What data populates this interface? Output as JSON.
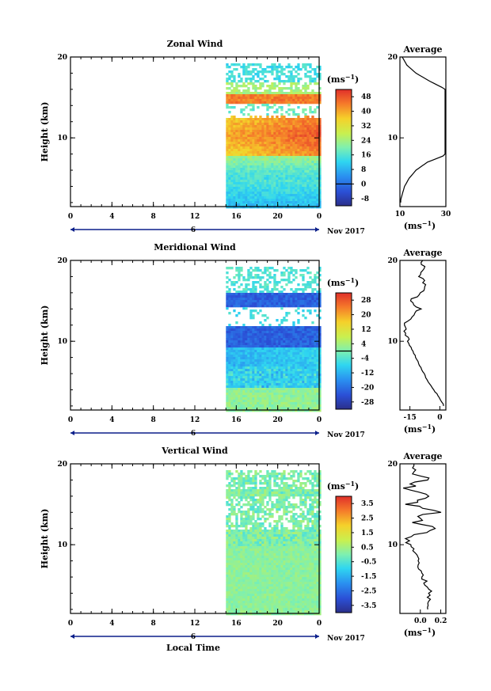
{
  "figure": {
    "xlabel": "Local Time",
    "date_label": "Nov 2017",
    "day_label": "6",
    "unit_label": "(ms",
    "unit_exp": "−1",
    "average_title": "Average"
  },
  "chart_data": [
    {
      "type": "heatmap",
      "title": "Zonal Wind",
      "ylabel": "Height (km)",
      "xlabel": "",
      "x_ticks": [
        "0",
        "4",
        "8",
        "12",
        "16",
        "20",
        "0"
      ],
      "y_ticks": [
        "10",
        "20"
      ],
      "xlim": [
        0,
        24
      ],
      "ylim": [
        1.5,
        20
      ],
      "data_start_hour": 15,
      "colorbar": {
        "ticks": [
          "48",
          "40",
          "32",
          "24",
          "16",
          "8",
          "0",
          "-8"
        ],
        "range": [
          -12,
          52
        ]
      },
      "profile": [
        {
          "h": 2,
          "v": 10
        },
        {
          "h": 3,
          "v": 11
        },
        {
          "h": 4,
          "v": 12
        },
        {
          "h": 5,
          "v": 14
        },
        {
          "h": 6,
          "v": 17
        },
        {
          "h": 7,
          "v": 22
        },
        {
          "h": 8,
          "v": 31
        },
        {
          "h": 9,
          "v": 40
        },
        {
          "h": 10,
          "v": 46
        },
        {
          "h": 11,
          "v": 48
        },
        {
          "h": 12,
          "v": 47
        },
        {
          "h": 13,
          "v": 44
        },
        {
          "h": 14,
          "v": 42
        },
        {
          "h": 15,
          "v": 37
        },
        {
          "h": 16,
          "v": 30
        },
        {
          "h": 17,
          "v": 23
        },
        {
          "h": 18,
          "v": 17
        },
        {
          "h": 19,
          "v": 13
        },
        {
          "h": 20,
          "v": 11
        }
      ],
      "profile_ticks": [
        "10",
        "30"
      ],
      "profile_xlim": [
        10,
        30
      ]
    },
    {
      "type": "heatmap",
      "title": "Meridional Wind",
      "ylabel": "Height (km)",
      "xlabel": "",
      "x_ticks": [
        "0",
        "4",
        "8",
        "12",
        "16",
        "20",
        "0"
      ],
      "y_ticks": [
        "10",
        "20"
      ],
      "xlim": [
        0,
        24
      ],
      "ylim": [
        1.5,
        20
      ],
      "data_start_hour": 15,
      "colorbar": {
        "ticks": [
          "28",
          "20",
          "12",
          "4",
          "-4",
          "-12",
          "-20",
          "-28"
        ],
        "range": [
          -32,
          32
        ]
      },
      "profile": [
        {
          "h": 2,
          "v": 2
        },
        {
          "h": 3,
          "v": 0
        },
        {
          "h": 4,
          "v": -3
        },
        {
          "h": 5,
          "v": -6
        },
        {
          "h": 6,
          "v": -8
        },
        {
          "h": 7,
          "v": -10
        },
        {
          "h": 8,
          "v": -12
        },
        {
          "h": 9,
          "v": -14
        },
        {
          "h": 10,
          "v": -16
        },
        {
          "h": 11,
          "v": -17
        },
        {
          "h": 12,
          "v": -18
        },
        {
          "h": 13,
          "v": -14
        },
        {
          "h": 14,
          "v": -10
        },
        {
          "h": 15,
          "v": -15
        },
        {
          "h": 16,
          "v": -9
        },
        {
          "h": 17,
          "v": -7
        },
        {
          "h": 18,
          "v": -10
        },
        {
          "h": 19,
          "v": -8
        },
        {
          "h": 20,
          "v": -9
        }
      ],
      "profile_ticks": [
        "-15",
        "0"
      ],
      "profile_xlim": [
        -20,
        3
      ]
    },
    {
      "type": "heatmap",
      "title": "Vertical Wind",
      "ylabel": "Height (km)",
      "xlabel": "Local Time",
      "x_ticks": [
        "0",
        "4",
        "8",
        "12",
        "16",
        "20",
        "0"
      ],
      "y_ticks": [
        "10",
        "20"
      ],
      "xlim": [
        0,
        24
      ],
      "ylim": [
        1.5,
        20
      ],
      "data_start_hour": 15,
      "colorbar": {
        "ticks": [
          "3.5",
          "2.5",
          "1.5",
          "0.5",
          "-0.5",
          "-1.5",
          "-2.5",
          "-3.5"
        ],
        "range": [
          -4,
          4
        ]
      },
      "profile": [
        {
          "h": 2,
          "v": 0.05
        },
        {
          "h": 3,
          "v": 0.08
        },
        {
          "h": 4,
          "v": 0.1
        },
        {
          "h": 5,
          "v": 0.06
        },
        {
          "h": 6,
          "v": 0.03
        },
        {
          "h": 7,
          "v": 0.0
        },
        {
          "h": 8,
          "v": -0.02
        },
        {
          "h": 9,
          "v": -0.05
        },
        {
          "h": 10,
          "v": -0.08
        },
        {
          "h": 11,
          "v": -0.1
        },
        {
          "h": 12,
          "v": 0.12
        },
        {
          "h": 13,
          "v": -0.05
        },
        {
          "h": 14,
          "v": 0.15
        },
        {
          "h": 15,
          "v": -0.08
        },
        {
          "h": 16,
          "v": 0.1
        },
        {
          "h": 17,
          "v": -0.1
        },
        {
          "h": 18,
          "v": 0.05
        },
        {
          "h": 19,
          "v": -0.05
        },
        {
          "h": 20,
          "v": 0.0
        }
      ],
      "profile_ticks": [
        "0.0",
        "0.2"
      ],
      "profile_xlim": [
        -0.2,
        0.25
      ]
    }
  ]
}
